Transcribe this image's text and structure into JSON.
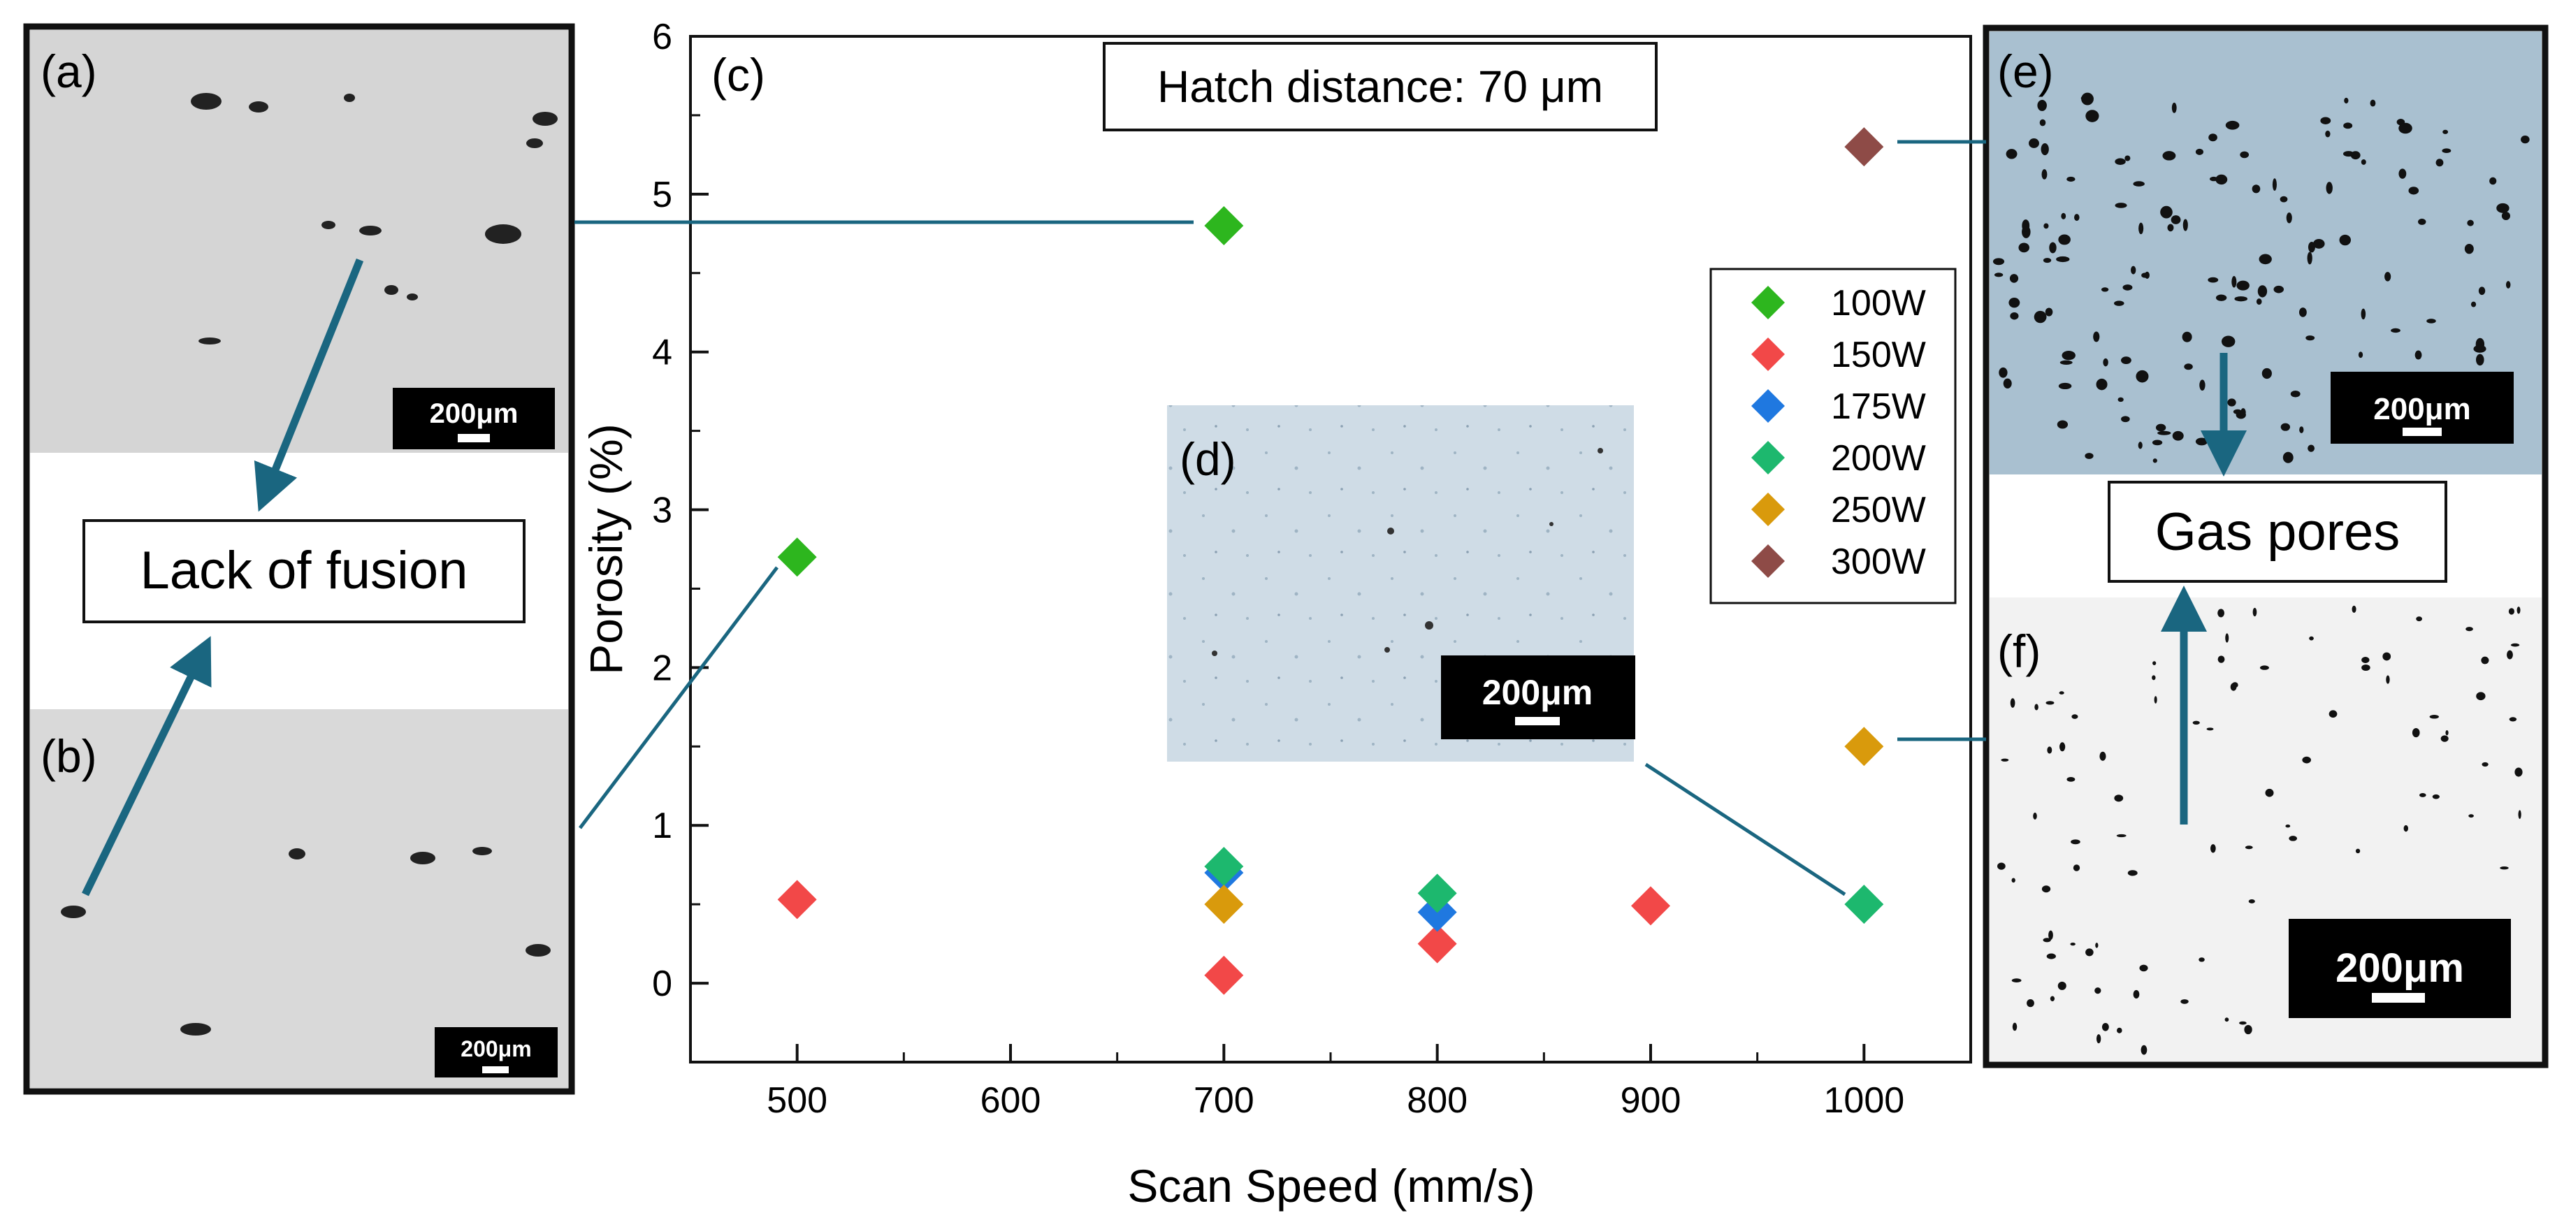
{
  "chart_data": {
    "type": "scatter",
    "title": "Hatch distance: 70 μm",
    "panel_label": "(c)",
    "xlabel": "Scan Speed (mm/s)",
    "ylabel": "Porosity (%)",
    "xlim": [
      450,
      1050
    ],
    "ylim": [
      -0.5,
      6
    ],
    "xticks": [
      500,
      600,
      700,
      800,
      900,
      1000
    ],
    "yticks": [
      0,
      1,
      2,
      3,
      4,
      5,
      6
    ],
    "legend_position": "right",
    "series": [
      {
        "name": "100W",
        "color": "#2db61e",
        "points": [
          [
            500,
            2.7
          ],
          [
            700,
            4.8
          ]
        ]
      },
      {
        "name": "150W",
        "color": "#f24848",
        "points": [
          [
            500,
            0.53
          ],
          [
            700,
            0.05
          ],
          [
            800,
            0.25
          ],
          [
            900,
            0.49
          ]
        ]
      },
      {
        "name": "175W",
        "color": "#1f78e0",
        "points": [
          [
            700,
            0.7
          ],
          [
            800,
            0.45
          ]
        ]
      },
      {
        "name": "200W",
        "color": "#1db86e",
        "points": [
          [
            700,
            0.74
          ],
          [
            800,
            0.57
          ],
          [
            1000,
            0.5
          ]
        ]
      },
      {
        "name": "250W",
        "color": "#d99a0c",
        "points": [
          [
            700,
            0.5
          ],
          [
            1000,
            1.5
          ]
        ]
      },
      {
        "name": "300W",
        "color": "#8e4b47",
        "points": [
          [
            1000,
            5.3
          ]
        ]
      }
    ]
  },
  "micrographs": {
    "a": {
      "label": "(a)",
      "scale": "200μm"
    },
    "b": {
      "label": "(b)",
      "scale": "200μm"
    },
    "d": {
      "label": "(d)",
      "scale": "200μm"
    },
    "e": {
      "label": "(e)",
      "scale": "200μm"
    },
    "f": {
      "label": "(f)",
      "scale": "200μm"
    }
  },
  "annotations": {
    "lack_of_fusion": "Lack of fusion",
    "gas_pores": "Gas pores"
  },
  "colors": {
    "connector": "#1a6680",
    "sem_gray": "#d6d6d6",
    "optical_blue": "#a9c0d0",
    "optical_white": "#f2f2f2"
  }
}
